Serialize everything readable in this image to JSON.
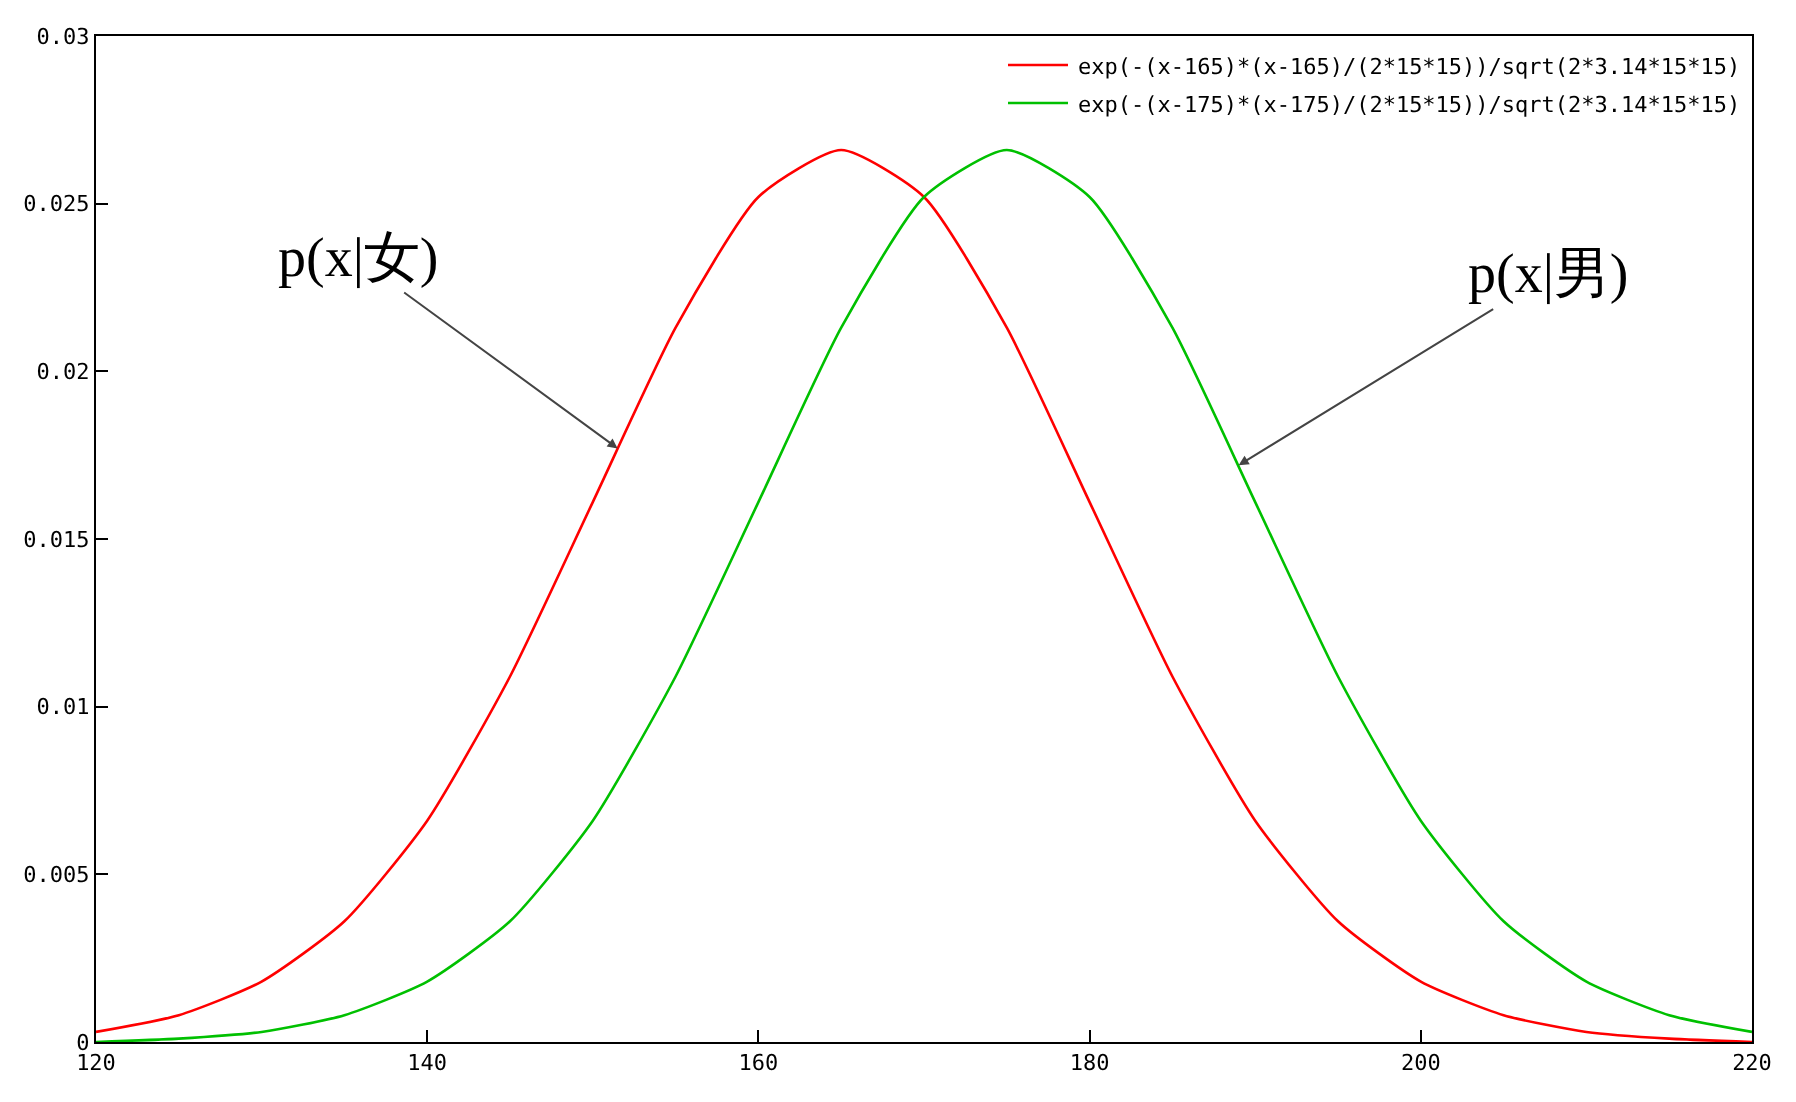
{
  "chart_data": {
    "type": "line",
    "x": [
      120,
      125,
      130,
      135,
      140,
      145,
      150,
      155,
      160,
      165,
      170,
      175,
      180,
      185,
      190,
      195,
      200,
      205,
      210,
      215,
      220
    ],
    "series": [
      {
        "name": "exp(-(x-165)*(x-165)/(2*15*15))/sqrt(2*3.14*15*15)",
        "color": "#ff0000",
        "values": [
          0.0003,
          0.0008,
          0.0018,
          0.0036,
          0.0066,
          0.0109,
          0.0161,
          0.0213,
          0.0252,
          0.0266,
          0.0252,
          0.0213,
          0.0161,
          0.0109,
          0.0066,
          0.0036,
          0.0018,
          0.0008,
          0.0003,
          0.0001,
          0.0
        ]
      },
      {
        "name": "exp(-(x-175)*(x-175)/(2*15*15))/sqrt(2*3.14*15*15)",
        "color": "#00c000",
        "values": [
          0.0,
          0.0001,
          0.0003,
          0.0008,
          0.0018,
          0.0036,
          0.0066,
          0.0109,
          0.0161,
          0.0213,
          0.0252,
          0.0266,
          0.0252,
          0.0213,
          0.0161,
          0.0109,
          0.0066,
          0.0036,
          0.0018,
          0.0008,
          0.0003
        ]
      }
    ],
    "xlim": [
      120,
      220
    ],
    "xticks": [
      120,
      140,
      160,
      180,
      200,
      220
    ],
    "ylim": [
      0,
      0.03
    ],
    "yticks": [
      0,
      0.005,
      0.01,
      0.015,
      0.02,
      0.025,
      0.03
    ],
    "grid": false,
    "legend": "top right",
    "marker": "none",
    "line_style": "solid",
    "annotations": [
      {
        "text": "p(x|女)",
        "x": 151.5,
        "y": 0.0177
      },
      {
        "text": "p(x|男)",
        "x": 189,
        "y": 0.0172
      }
    ]
  }
}
